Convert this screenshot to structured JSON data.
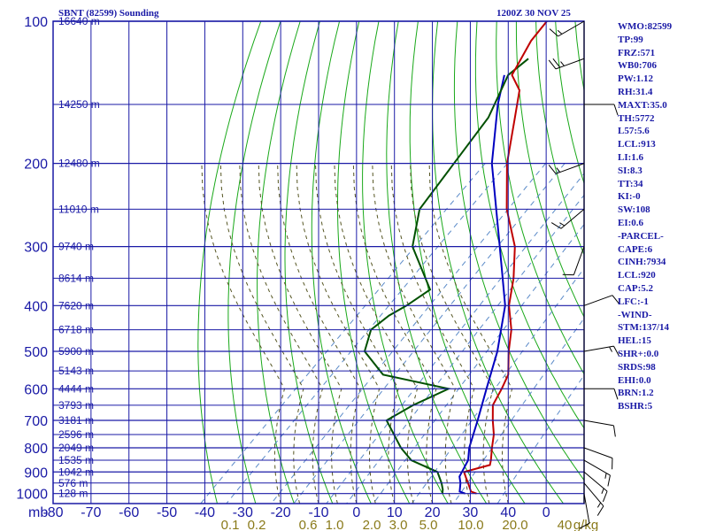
{
  "header": {
    "station": "SBNT (82599) Sounding",
    "datetime": "1200Z 30 NOV 25"
  },
  "indices": [
    "WMO:82599",
    "TP:99",
    "FRZ:571",
    "WB0:706",
    "PW:1.12",
    "RH:31.4",
    "MAXT:35.0",
    "TH:5772",
    "L57:5.6",
    "LCL:913",
    "LI:1.6",
    "SI:8.3",
    "TT:34",
    "KI:-0",
    "SW:108",
    "EI:0.6",
    "-PARCEL-",
    "CAPE:6",
    "CINH:7934",
    "LCL:920",
    "CAP:5.2",
    "LFC:-1",
    "-WIND-",
    "STM:137/14",
    "HEL:15",
    "SHR+:0.0",
    "SRDS:98",
    "EHI:0.0",
    "BRN:1.2",
    "BSHR:5"
  ],
  "colors": {
    "grid": "#1a1aa6",
    "dryadiabat": "#19a819",
    "temperature": "#c00000",
    "dewpoint": "#005000",
    "parcel": "#0000c0",
    "mixing": "#5a8ac8",
    "moistadiabat": "#555522",
    "mixlabel": "#8a7a1a"
  },
  "chart_data": {
    "type": "skew-t",
    "title": "SBNT (82599) Sounding",
    "xlabel": "mb",
    "pressure_levels": [
      100,
      200,
      300,
      400,
      500,
      600,
      700,
      800,
      900,
      1000
    ],
    "pressure_labels": [
      "100",
      "200",
      "300",
      "400",
      "500",
      "600",
      "700",
      "800",
      "900",
      "1000"
    ],
    "temp_ticks": [
      "-80",
      "-70",
      "-60",
      "-50",
      "-40",
      "-30",
      "-20",
      "-10",
      "0",
      "10",
      "20",
      "30",
      "40",
      "0"
    ],
    "mixing_ratio_labels": [
      "0.1",
      "0.2",
      "0.6",
      "1.0",
      "2.0",
      "3.0",
      "5.0",
      "10.0",
      "20.0",
      "40",
      "g/kg"
    ],
    "height_labels": [
      {
        "p": 100,
        "text": "16640 m"
      },
      {
        "p": 150,
        "text": "14250 m"
      },
      {
        "p": 200,
        "text": "12480 m"
      },
      {
        "p": 250,
        "text": "11010 m"
      },
      {
        "p": 300,
        "text": "9740 m"
      },
      {
        "p": 350,
        "text": "8614 m"
      },
      {
        "p": 400,
        "text": "7620 m"
      },
      {
        "p": 450,
        "text": "6718 m"
      },
      {
        "p": 500,
        "text": "5900 m"
      },
      {
        "p": 550,
        "text": "5143 m"
      },
      {
        "p": 600,
        "text": "4444 m"
      },
      {
        "p": 650,
        "text": "3793 m"
      },
      {
        "p": 700,
        "text": "3181 m"
      },
      {
        "p": 750,
        "text": "2596 m"
      },
      {
        "p": 800,
        "text": "2049 m"
      },
      {
        "p": 850,
        "text": "1535 m"
      },
      {
        "p": 900,
        "text": "1042 m"
      },
      {
        "p": 950,
        "text": "576 m"
      },
      {
        "p": 1000,
        "text": "128 m"
      }
    ],
    "temperature": [
      [
        1000,
        29
      ],
      [
        990,
        27
      ],
      [
        950,
        24
      ],
      [
        925,
        22
      ],
      [
        900,
        20
      ],
      [
        870,
        25
      ],
      [
        850,
        24
      ],
      [
        800,
        21
      ],
      [
        750,
        18
      ],
      [
        700,
        14
      ],
      [
        650,
        10
      ],
      [
        600,
        8
      ],
      [
        560,
        6
      ],
      [
        500,
        0
      ],
      [
        450,
        -5
      ],
      [
        400,
        -12
      ],
      [
        350,
        -18
      ],
      [
        300,
        -26
      ],
      [
        250,
        -38
      ],
      [
        200,
        -50
      ],
      [
        160,
        -60
      ],
      [
        140,
        -66
      ],
      [
        130,
        -72
      ],
      [
        110,
        -76
      ],
      [
        100,
        -77
      ]
    ],
    "dewpoint": [
      [
        1000,
        20
      ],
      [
        980,
        19
      ],
      [
        950,
        17
      ],
      [
        900,
        13
      ],
      [
        850,
        3
      ],
      [
        800,
        -3
      ],
      [
        700,
        -14
      ],
      [
        650,
        -11
      ],
      [
        600,
        -6
      ],
      [
        560,
        -27
      ],
      [
        500,
        -38
      ],
      [
        450,
        -42
      ],
      [
        420,
        -41
      ],
      [
        400,
        -39
      ],
      [
        370,
        -37
      ],
      [
        300,
        -53
      ],
      [
        250,
        -61
      ],
      [
        200,
        -64
      ],
      [
        160,
        -67
      ],
      [
        130,
        -73
      ],
      [
        120,
        -72
      ]
    ],
    "parcel": [
      [
        1000,
        26
      ],
      [
        990,
        24
      ],
      [
        950,
        22
      ],
      [
        920,
        20
      ],
      [
        850,
        18
      ],
      [
        800,
        15
      ],
      [
        700,
        10
      ],
      [
        600,
        4
      ],
      [
        500,
        -3
      ],
      [
        400,
        -13
      ],
      [
        300,
        -30
      ],
      [
        200,
        -54
      ],
      [
        150,
        -68
      ],
      [
        130,
        -74
      ]
    ],
    "wind_barbs": [
      {
        "p": 1000,
        "dir": 170,
        "spd": 10
      },
      {
        "p": 950,
        "dir": 140,
        "spd": 15
      },
      {
        "p": 900,
        "dir": 130,
        "spd": 15
      },
      {
        "p": 850,
        "dir": 120,
        "spd": 15
      },
      {
        "p": 800,
        "dir": 110,
        "spd": 10
      },
      {
        "p": 700,
        "dir": 100,
        "spd": 10
      },
      {
        "p": 600,
        "dir": 90,
        "spd": 10
      },
      {
        "p": 500,
        "dir": 80,
        "spd": 15
      },
      {
        "p": 400,
        "dir": 70,
        "spd": 10
      },
      {
        "p": 300,
        "dir": 200,
        "spd": 10
      },
      {
        "p": 250,
        "dir": 230,
        "spd": 15
      },
      {
        "p": 200,
        "dir": 250,
        "spd": 15
      },
      {
        "p": 150,
        "dir": 90,
        "spd": 10
      },
      {
        "p": 120,
        "dir": 250,
        "spd": 25
      },
      {
        "p": 100,
        "dir": 240,
        "spd": 15
      }
    ]
  }
}
